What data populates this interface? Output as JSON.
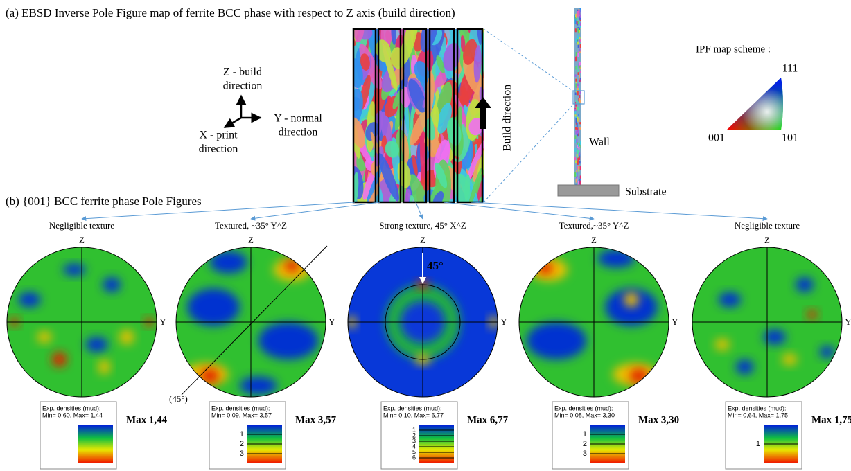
{
  "caption_a": "(a) EBSD Inverse Pole Figure map of ferrite BCC phase with respect to Z axis (build direction)",
  "coordinate_system": {
    "z": [
      "Z  - build",
      "direction"
    ],
    "y": [
      "Y - normal",
      "direction"
    ],
    "x": [
      "X - print",
      "direction"
    ]
  },
  "build_direction": "Build direction",
  "wall": "Wall",
  "substrate": "Substrate",
  "ipf_scheme": {
    "title": "IPF map scheme :",
    "corner_001": "001",
    "corner_101": "101",
    "corner_111": "111"
  },
  "caption_b": "(b) {001} BCC ferrite phase Pole Figures",
  "axis_labels": {
    "z": "Z",
    "y": "Y"
  },
  "legend_title": "Exp. densities (mud):",
  "pole_figures": [
    {
      "caption": "Negligible texture",
      "legend_range": "Min= 0,60, Max= 1,44",
      "levels": [],
      "max_label": "Max 1,44"
    },
    {
      "caption": "Textured, ~35° Y^Z",
      "legend_range": "Min= 0,09, Max= 3,57",
      "levels": [
        "1",
        "2",
        "3"
      ],
      "max_label": "Max 3,57",
      "annotation": "(45°)"
    },
    {
      "caption": "Strong texture, 45° X^Z",
      "legend_range": "Min= 0,10, Max= 6,77",
      "levels": [
        "1",
        "2",
        "3",
        "4",
        "5",
        "6"
      ],
      "max_label": "Max 6,77",
      "annotation": "45°"
    },
    {
      "caption": "Textured,~35° Y^Z",
      "legend_range": "Min= 0,08, Max= 3,30",
      "levels": [
        "1",
        "2",
        "3"
      ],
      "max_label": "Max 3,30"
    },
    {
      "caption": "Negligible texture",
      "legend_range": "Min= 0,64, Max= 1,75",
      "levels": [
        "1"
      ],
      "max_label": "Max 1,75"
    }
  ]
}
